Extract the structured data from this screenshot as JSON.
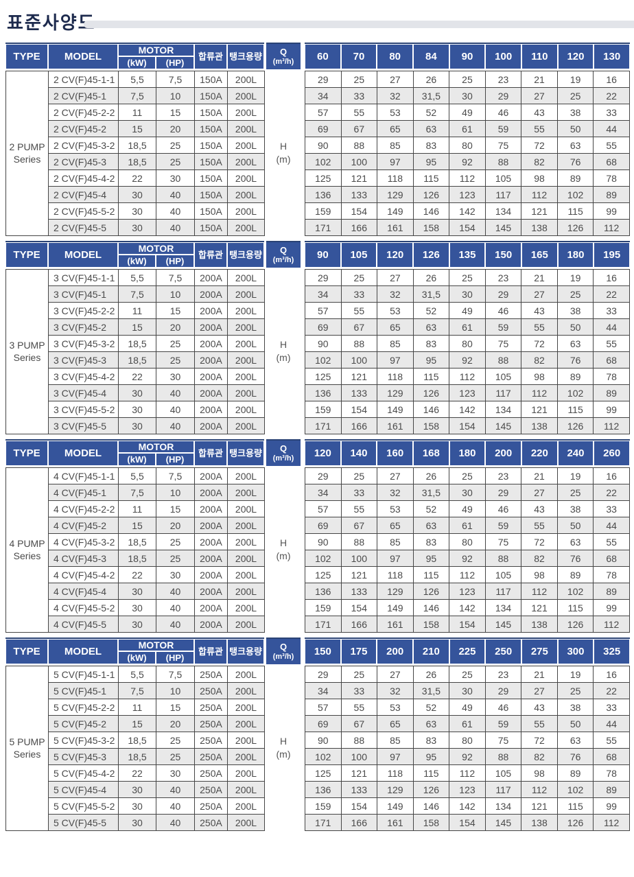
{
  "page": {
    "title": "표준사양도"
  },
  "colors": {
    "header_blue": "#35549b",
    "header_top": "#2a4375",
    "row_alt": "#e9e9e9",
    "border_dark": "#454545",
    "text_dark": "#4a4a4a",
    "title_navy": "#1d2a4d",
    "bar_gray": "#e2e4e9"
  },
  "labels": {
    "type": "TYPE",
    "model": "MODEL",
    "motor": "MOTOR",
    "kw": "(kW)",
    "hp": "(HP)",
    "pipe": "합류관",
    "tank": "탱크용량",
    "q1": "Q",
    "q2": "(m³/h)",
    "h1": "H",
    "h2": "(m)"
  },
  "sections": [
    {
      "series": "2 PUMP Series",
      "type_label": [
        "2 PUMP",
        "Series"
      ],
      "q_columns": [
        "60",
        "70",
        "80",
        "84",
        "90",
        "100",
        "110",
        "120",
        "130"
      ],
      "rows": [
        {
          "model": "2 CV(F)45-1-1",
          "kw": "5,5",
          "hp": "7,5",
          "pipe": "150A",
          "tank": "200L",
          "h": [
            "29",
            "25",
            "27",
            "26",
            "25",
            "23",
            "21",
            "19",
            "16"
          ]
        },
        {
          "model": "2 CV(F)45-1",
          "kw": "7,5",
          "hp": "10",
          "pipe": "150A",
          "tank": "200L",
          "h": [
            "34",
            "33",
            "32",
            "31,5",
            "30",
            "29",
            "27",
            "25",
            "22"
          ]
        },
        {
          "model": "2 CV(F)45-2-2",
          "kw": "11",
          "hp": "15",
          "pipe": "150A",
          "tank": "200L",
          "h": [
            "57",
            "55",
            "53",
            "52",
            "49",
            "46",
            "43",
            "38",
            "33"
          ]
        },
        {
          "model": "2 CV(F)45-2",
          "kw": "15",
          "hp": "20",
          "pipe": "150A",
          "tank": "200L",
          "h": [
            "69",
            "67",
            "65",
            "63",
            "61",
            "59",
            "55",
            "50",
            "44"
          ]
        },
        {
          "model": "2 CV(F)45-3-2",
          "kw": "18,5",
          "hp": "25",
          "pipe": "150A",
          "tank": "200L",
          "h": [
            "90",
            "88",
            "85",
            "83",
            "80",
            "75",
            "72",
            "63",
            "55"
          ]
        },
        {
          "model": "2 CV(F)45-3",
          "kw": "18,5",
          "hp": "25",
          "pipe": "150A",
          "tank": "200L",
          "h": [
            "102",
            "100",
            "97",
            "95",
            "92",
            "88",
            "82",
            "76",
            "68"
          ]
        },
        {
          "model": "2 CV(F)45-4-2",
          "kw": "22",
          "hp": "30",
          "pipe": "150A",
          "tank": "200L",
          "h": [
            "125",
            "121",
            "118",
            "115",
            "112",
            "105",
            "98",
            "89",
            "78"
          ]
        },
        {
          "model": "2 CV(F)45-4",
          "kw": "30",
          "hp": "40",
          "pipe": "150A",
          "tank": "200L",
          "h": [
            "136",
            "133",
            "129",
            "126",
            "123",
            "117",
            "112",
            "102",
            "89"
          ]
        },
        {
          "model": "2 CV(F)45-5-2",
          "kw": "30",
          "hp": "40",
          "pipe": "150A",
          "tank": "200L",
          "h": [
            "159",
            "154",
            "149",
            "146",
            "142",
            "134",
            "121",
            "115",
            "99"
          ]
        },
        {
          "model": "2 CV(F)45-5",
          "kw": "30",
          "hp": "40",
          "pipe": "150A",
          "tank": "200L",
          "h": [
            "171",
            "166",
            "161",
            "158",
            "154",
            "145",
            "138",
            "126",
            "112"
          ]
        }
      ]
    },
    {
      "series": "3 PUMP Series",
      "type_label": [
        "3 PUMP",
        "Series"
      ],
      "q_columns": [
        "90",
        "105",
        "120",
        "126",
        "135",
        "150",
        "165",
        "180",
        "195"
      ],
      "rows": [
        {
          "model": "3 CV(F)45-1-1",
          "kw": "5,5",
          "hp": "7,5",
          "pipe": "200A",
          "tank": "200L",
          "h": [
            "29",
            "25",
            "27",
            "26",
            "25",
            "23",
            "21",
            "19",
            "16"
          ]
        },
        {
          "model": "3 CV(F)45-1",
          "kw": "7,5",
          "hp": "10",
          "pipe": "200A",
          "tank": "200L",
          "h": [
            "34",
            "33",
            "32",
            "31,5",
            "30",
            "29",
            "27",
            "25",
            "22"
          ]
        },
        {
          "model": "3 CV(F)45-2-2",
          "kw": "11",
          "hp": "15",
          "pipe": "200A",
          "tank": "200L",
          "h": [
            "57",
            "55",
            "53",
            "52",
            "49",
            "46",
            "43",
            "38",
            "33"
          ]
        },
        {
          "model": "3 CV(F)45-2",
          "kw": "15",
          "hp": "20",
          "pipe": "200A",
          "tank": "200L",
          "h": [
            "69",
            "67",
            "65",
            "63",
            "61",
            "59",
            "55",
            "50",
            "44"
          ]
        },
        {
          "model": "3 CV(F)45-3-2",
          "kw": "18,5",
          "hp": "25",
          "pipe": "200A",
          "tank": "200L",
          "h": [
            "90",
            "88",
            "85",
            "83",
            "80",
            "75",
            "72",
            "63",
            "55"
          ]
        },
        {
          "model": "3 CV(F)45-3",
          "kw": "18,5",
          "hp": "25",
          "pipe": "200A",
          "tank": "200L",
          "h": [
            "102",
            "100",
            "97",
            "95",
            "92",
            "88",
            "82",
            "76",
            "68"
          ]
        },
        {
          "model": "3 CV(F)45-4-2",
          "kw": "22",
          "hp": "30",
          "pipe": "200A",
          "tank": "200L",
          "h": [
            "125",
            "121",
            "118",
            "115",
            "112",
            "105",
            "98",
            "89",
            "78"
          ]
        },
        {
          "model": "3 CV(F)45-4",
          "kw": "30",
          "hp": "40",
          "pipe": "200A",
          "tank": "200L",
          "h": [
            "136",
            "133",
            "129",
            "126",
            "123",
            "117",
            "112",
            "102",
            "89"
          ]
        },
        {
          "model": "3 CV(F)45-5-2",
          "kw": "30",
          "hp": "40",
          "pipe": "200A",
          "tank": "200L",
          "h": [
            "159",
            "154",
            "149",
            "146",
            "142",
            "134",
            "121",
            "115",
            "99"
          ]
        },
        {
          "model": "3 CV(F)45-5",
          "kw": "30",
          "hp": "40",
          "pipe": "200A",
          "tank": "200L",
          "h": [
            "171",
            "166",
            "161",
            "158",
            "154",
            "145",
            "138",
            "126",
            "112"
          ]
        }
      ]
    },
    {
      "series": "4 PUMP Series",
      "type_label": [
        "4 PUMP",
        "Series"
      ],
      "q_columns": [
        "120",
        "140",
        "160",
        "168",
        "180",
        "200",
        "220",
        "240",
        "260"
      ],
      "rows": [
        {
          "model": "4 CV(F)45-1-1",
          "kw": "5,5",
          "hp": "7,5",
          "pipe": "200A",
          "tank": "200L",
          "h": [
            "29",
            "25",
            "27",
            "26",
            "25",
            "23",
            "21",
            "19",
            "16"
          ]
        },
        {
          "model": "4 CV(F)45-1",
          "kw": "7,5",
          "hp": "10",
          "pipe": "200A",
          "tank": "200L",
          "h": [
            "34",
            "33",
            "32",
            "31,5",
            "30",
            "29",
            "27",
            "25",
            "22"
          ]
        },
        {
          "model": "4 CV(F)45-2-2",
          "kw": "11",
          "hp": "15",
          "pipe": "200A",
          "tank": "200L",
          "h": [
            "57",
            "55",
            "53",
            "52",
            "49",
            "46",
            "43",
            "38",
            "33"
          ]
        },
        {
          "model": "4 CV(F)45-2",
          "kw": "15",
          "hp": "20",
          "pipe": "200A",
          "tank": "200L",
          "h": [
            "69",
            "67",
            "65",
            "63",
            "61",
            "59",
            "55",
            "50",
            "44"
          ]
        },
        {
          "model": "4 CV(F)45-3-2",
          "kw": "18,5",
          "hp": "25",
          "pipe": "200A",
          "tank": "200L",
          "h": [
            "90",
            "88",
            "85",
            "83",
            "80",
            "75",
            "72",
            "63",
            "55"
          ]
        },
        {
          "model": "4 CV(F)45-3",
          "kw": "18,5",
          "hp": "25",
          "pipe": "200A",
          "tank": "200L",
          "h": [
            "102",
            "100",
            "97",
            "95",
            "92",
            "88",
            "82",
            "76",
            "68"
          ]
        },
        {
          "model": "4 CV(F)45-4-2",
          "kw": "22",
          "hp": "30",
          "pipe": "200A",
          "tank": "200L",
          "h": [
            "125",
            "121",
            "118",
            "115",
            "112",
            "105",
            "98",
            "89",
            "78"
          ]
        },
        {
          "model": "4 CV(F)45-4",
          "kw": "30",
          "hp": "40",
          "pipe": "200A",
          "tank": "200L",
          "h": [
            "136",
            "133",
            "129",
            "126",
            "123",
            "117",
            "112",
            "102",
            "89"
          ]
        },
        {
          "model": "4 CV(F)45-5-2",
          "kw": "30",
          "hp": "40",
          "pipe": "200A",
          "tank": "200L",
          "h": [
            "159",
            "154",
            "149",
            "146",
            "142",
            "134",
            "121",
            "115",
            "99"
          ]
        },
        {
          "model": "4 CV(F)45-5",
          "kw": "30",
          "hp": "40",
          "pipe": "200A",
          "tank": "200L",
          "h": [
            "171",
            "166",
            "161",
            "158",
            "154",
            "145",
            "138",
            "126",
            "112"
          ]
        }
      ]
    },
    {
      "series": "5 PUMP Series",
      "type_label": [
        "5 PUMP",
        "Series"
      ],
      "q_columns": [
        "150",
        "175",
        "200",
        "210",
        "225",
        "250",
        "275",
        "300",
        "325"
      ],
      "rows": [
        {
          "model": "5 CV(F)45-1-1",
          "kw": "5,5",
          "hp": "7,5",
          "pipe": "250A",
          "tank": "200L",
          "h": [
            "29",
            "25",
            "27",
            "26",
            "25",
            "23",
            "21",
            "19",
            "16"
          ]
        },
        {
          "model": "5 CV(F)45-1",
          "kw": "7,5",
          "hp": "10",
          "pipe": "250A",
          "tank": "200L",
          "h": [
            "34",
            "33",
            "32",
            "31,5",
            "30",
            "29",
            "27",
            "25",
            "22"
          ]
        },
        {
          "model": "5 CV(F)45-2-2",
          "kw": "11",
          "hp": "15",
          "pipe": "250A",
          "tank": "200L",
          "h": [
            "57",
            "55",
            "53",
            "52",
            "49",
            "46",
            "43",
            "38",
            "33"
          ]
        },
        {
          "model": "5 CV(F)45-2",
          "kw": "15",
          "hp": "20",
          "pipe": "250A",
          "tank": "200L",
          "h": [
            "69",
            "67",
            "65",
            "63",
            "61",
            "59",
            "55",
            "50",
            "44"
          ]
        },
        {
          "model": "5 CV(F)45-3-2",
          "kw": "18,5",
          "hp": "25",
          "pipe": "250A",
          "tank": "200L",
          "h": [
            "90",
            "88",
            "85",
            "83",
            "80",
            "75",
            "72",
            "63",
            "55"
          ]
        },
        {
          "model": "5 CV(F)45-3",
          "kw": "18,5",
          "hp": "25",
          "pipe": "250A",
          "tank": "200L",
          "h": [
            "102",
            "100",
            "97",
            "95",
            "92",
            "88",
            "82",
            "76",
            "68"
          ]
        },
        {
          "model": "5 CV(F)45-4-2",
          "kw": "22",
          "hp": "30",
          "pipe": "250A",
          "tank": "200L",
          "h": [
            "125",
            "121",
            "118",
            "115",
            "112",
            "105",
            "98",
            "89",
            "78"
          ]
        },
        {
          "model": "5 CV(F)45-4",
          "kw": "30",
          "hp": "40",
          "pipe": "250A",
          "tank": "200L",
          "h": [
            "136",
            "133",
            "129",
            "126",
            "123",
            "117",
            "112",
            "102",
            "89"
          ]
        },
        {
          "model": "5 CV(F)45-5-2",
          "kw": "30",
          "hp": "40",
          "pipe": "250A",
          "tank": "200L",
          "h": [
            "159",
            "154",
            "149",
            "146",
            "142",
            "134",
            "121",
            "115",
            "99"
          ]
        },
        {
          "model": "5 CV(F)45-5",
          "kw": "30",
          "hp": "40",
          "pipe": "250A",
          "tank": "200L",
          "h": [
            "171",
            "166",
            "161",
            "158",
            "154",
            "145",
            "138",
            "126",
            "112"
          ]
        }
      ]
    }
  ]
}
